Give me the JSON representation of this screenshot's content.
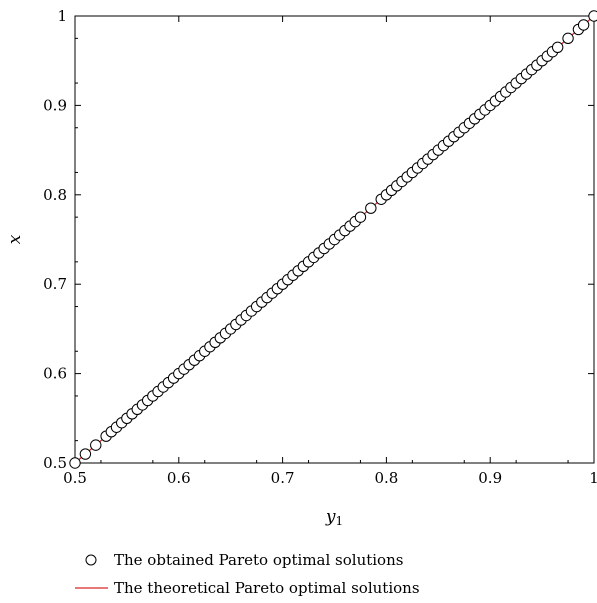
{
  "chart_data": {
    "type": "scatter",
    "title": "",
    "xlabel": "y",
    "xlabel_subscript": "1",
    "ylabel": "x",
    "xlim": [
      0.5,
      1.0
    ],
    "ylim": [
      0.5,
      1.0
    ],
    "x_ticks": [
      0.5,
      0.6,
      0.7,
      0.8,
      0.9,
      1.0
    ],
    "x_tick_labels": [
      "0.5",
      "0.6",
      "0.7",
      "0.8",
      "0.9",
      "1"
    ],
    "y_ticks": [
      0.5,
      0.6,
      0.7,
      0.8,
      0.9,
      1.0
    ],
    "y_tick_labels": [
      "0.5",
      "0.6",
      "0.7",
      "0.8",
      "0.9",
      "1"
    ],
    "grid": false,
    "legend_position": "bottom",
    "series": [
      {
        "name": "The obtained Pareto optimal solutions",
        "kind": "scatter",
        "marker": "open-circle",
        "color": "#000000",
        "x": [
          0.5,
          0.51,
          0.52,
          0.53,
          0.535,
          0.54,
          0.545,
          0.55,
          0.555,
          0.56,
          0.565,
          0.57,
          0.575,
          0.58,
          0.585,
          0.59,
          0.595,
          0.6,
          0.605,
          0.61,
          0.615,
          0.62,
          0.625,
          0.63,
          0.635,
          0.64,
          0.645,
          0.65,
          0.655,
          0.66,
          0.665,
          0.67,
          0.675,
          0.68,
          0.685,
          0.69,
          0.695,
          0.7,
          0.705,
          0.71,
          0.715,
          0.72,
          0.725,
          0.73,
          0.735,
          0.74,
          0.745,
          0.75,
          0.755,
          0.76,
          0.765,
          0.77,
          0.775,
          0.785,
          0.795,
          0.8,
          0.805,
          0.81,
          0.815,
          0.82,
          0.825,
          0.83,
          0.835,
          0.84,
          0.845,
          0.85,
          0.855,
          0.86,
          0.865,
          0.87,
          0.875,
          0.88,
          0.885,
          0.89,
          0.895,
          0.9,
          0.905,
          0.91,
          0.915,
          0.92,
          0.925,
          0.93,
          0.935,
          0.94,
          0.945,
          0.95,
          0.955,
          0.96,
          0.965,
          0.975,
          0.985,
          0.99,
          1.0
        ],
        "y": [
          0.5,
          0.51,
          0.52,
          0.53,
          0.535,
          0.54,
          0.545,
          0.55,
          0.555,
          0.56,
          0.565,
          0.57,
          0.575,
          0.58,
          0.585,
          0.59,
          0.595,
          0.6,
          0.605,
          0.61,
          0.615,
          0.62,
          0.625,
          0.63,
          0.635,
          0.64,
          0.645,
          0.65,
          0.655,
          0.66,
          0.665,
          0.67,
          0.675,
          0.68,
          0.685,
          0.69,
          0.695,
          0.7,
          0.705,
          0.71,
          0.715,
          0.72,
          0.725,
          0.73,
          0.735,
          0.74,
          0.745,
          0.75,
          0.755,
          0.76,
          0.765,
          0.77,
          0.775,
          0.785,
          0.795,
          0.8,
          0.805,
          0.81,
          0.815,
          0.82,
          0.825,
          0.83,
          0.835,
          0.84,
          0.845,
          0.85,
          0.855,
          0.86,
          0.865,
          0.87,
          0.875,
          0.88,
          0.885,
          0.89,
          0.895,
          0.9,
          0.905,
          0.91,
          0.915,
          0.92,
          0.925,
          0.93,
          0.935,
          0.94,
          0.945,
          0.95,
          0.955,
          0.96,
          0.965,
          0.975,
          0.985,
          0.99,
          1.0
        ]
      },
      {
        "name": "The theoretical Pareto optimal solutions",
        "kind": "line",
        "color": "#d62728",
        "x": [
          0.5,
          1.0
        ],
        "y": [
          0.5,
          1.0
        ]
      }
    ]
  }
}
